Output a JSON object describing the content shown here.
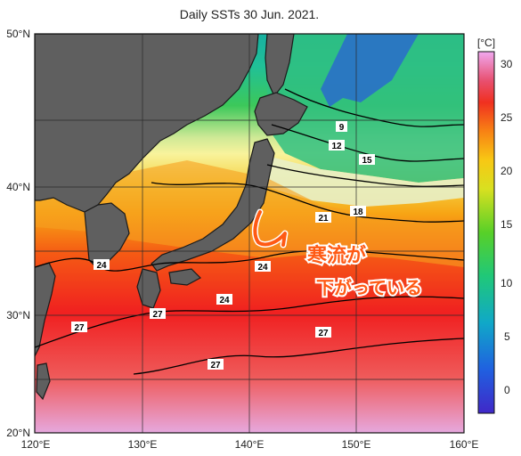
{
  "title": "Daily SSTs 30 Jun. 2021.",
  "lat_ticks": [
    "50°N",
    "40°N",
    "30°N",
    "20°N"
  ],
  "lon_ticks": [
    "120°E",
    "130°E",
    "140°E",
    "150°E",
    "160°E"
  ],
  "colorbar": {
    "unit": "[°C]",
    "ticks": [
      "30",
      "25",
      "20",
      "15",
      "10",
      "5",
      "0"
    ],
    "range": [
      -3,
      31
    ]
  },
  "contour_labels": [
    "9",
    "12",
    "15",
    "18",
    "21",
    "24",
    "24",
    "24",
    "27",
    "27",
    "27",
    "27"
  ],
  "annotation": {
    "line1": "寒流が",
    "line2": "下がっている"
  },
  "colors": {
    "land": "#5f5f5f",
    "annotation": "#ff5a14",
    "contour": "#000000",
    "grid": "#2a2a2a"
  }
}
